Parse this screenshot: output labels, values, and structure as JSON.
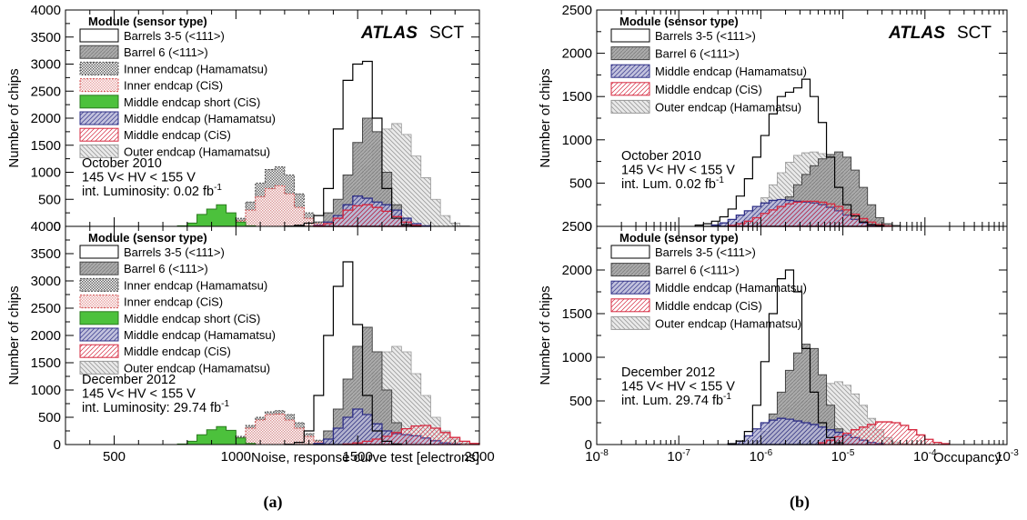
{
  "colors": {
    "barrels35": "#000000",
    "barrel6": "#999999",
    "inner_hamamatsu": "#444444",
    "inner_cis": "#d04848",
    "middle_short_cis": "#4cc13c",
    "middle_hamamatsu": "#2e2f86",
    "middle_cis": "#d6283f",
    "outer_hamamatsu": "#a8a8a8"
  },
  "legend_header": "Module (sensor type)",
  "brand": {
    "atlas": "ATLAS",
    "sct": "SCT"
  },
  "panel_labels": {
    "a": "(a)",
    "b": "(b)"
  },
  "chart_data": [
    {
      "id": "a-top",
      "type": "histogram",
      "ylabel": "Number of chips",
      "xlabel": "",
      "xlim": [
        300,
        2000
      ],
      "ylim": [
        0,
        4000
      ],
      "yticks": [
        0,
        500,
        1000,
        1500,
        2000,
        2500,
        3000,
        3500,
        4000
      ],
      "yticklabels": [
        "0",
        "500",
        "1000",
        "1500",
        "2000",
        "2500",
        "3000",
        "3500",
        "4000"
      ],
      "bin_width": 40,
      "legend": [
        "Barrels 3-5 (<111>)",
        "Barrel 6 (<111>)",
        "Inner endcap (Hamamatsu)",
        "Inner endcap (CiS)",
        "Middle endcap short (CiS)",
        "Middle endcap (Hamamatsu)",
        "Middle endcap (CiS)",
        "Outer endcap (Hamamatsu)"
      ],
      "info": [
        "October 2010",
        "145 V< HV < 155 V"
      ],
      "lumi": {
        "label": "int. Luminosity:  0.02 fb",
        "sup": "-1"
      },
      "series": [
        {
          "key": "barrels35",
          "name": "Barrels 3-5 (<111>)",
          "start": 1200,
          "values": [
            5,
            20,
            60,
            200,
            700,
            1800,
            2700,
            3000,
            3050,
            2000,
            700,
            150,
            30,
            5
          ]
        },
        {
          "key": "barrel6",
          "name": "Barrel 6 (<111>)",
          "start": 1240,
          "values": [
            5,
            20,
            80,
            250,
            500,
            950,
            1550,
            2000,
            1750,
            1000,
            400,
            120,
            30,
            5
          ]
        },
        {
          "key": "inner_hamamatsu",
          "name": "Inner endcap (Hamamatsu)",
          "start": 960,
          "values": [
            20,
            150,
            450,
            800,
            1050,
            1100,
            950,
            600,
            250,
            80,
            10
          ]
        },
        {
          "key": "inner_cis",
          "name": "Inner endcap (CiS)",
          "start": 960,
          "values": [
            10,
            100,
            300,
            550,
            700,
            750,
            600,
            350,
            150,
            50,
            5
          ]
        },
        {
          "key": "middle_short_cis",
          "name": "Middle endcap short (CiS)",
          "start": 760,
          "values": [
            10,
            60,
            220,
            320,
            400,
            250,
            80,
            10
          ]
        },
        {
          "key": "middle_hamamatsu",
          "name": "Middle endcap (Hamamatsu)",
          "start": 1320,
          "values": [
            20,
            80,
            200,
            400,
            560,
            520,
            450,
            400,
            300,
            150,
            50,
            10
          ]
        },
        {
          "key": "middle_cis",
          "name": "Middle endcap (CiS)",
          "start": 1320,
          "values": [
            10,
            50,
            150,
            300,
            380,
            400,
            350,
            280,
            180,
            80,
            20
          ]
        },
        {
          "key": "outer_hamamatsu",
          "name": "Outer endcap (Hamamatsu)",
          "start": 1320,
          "values": [
            10,
            50,
            150,
            350,
            700,
            1100,
            1500,
            1800,
            1900,
            1700,
            1300,
            900,
            500,
            200,
            60,
            10
          ]
        }
      ]
    },
    {
      "id": "a-bottom",
      "type": "histogram",
      "ylabel": "Number of chips",
      "xlabel": "Noise, response curve test [electrons]",
      "xlim": [
        300,
        2000
      ],
      "ylim": [
        0,
        4000
      ],
      "xticks": [
        500,
        1000,
        1500,
        2000
      ],
      "xticklabels": [
        "500",
        "1000",
        "1500",
        "2000"
      ],
      "yticks": [
        0,
        500,
        1000,
        1500,
        2000,
        2500,
        3000,
        3500,
        4000
      ],
      "yticklabels": [
        "0",
        "500",
        "1000",
        "1500",
        "2000",
        "2500",
        "3000",
        "3500",
        "4000"
      ],
      "bin_width": 40,
      "legend": [
        "Barrels 3-5 (<111>)",
        "Barrel 6 (<111>)",
        "Inner endcap (Hamamatsu)",
        "Inner endcap (CiS)",
        "Middle endcap short (CiS)",
        "Middle endcap (Hamamatsu)",
        "Middle endcap (CiS)",
        "Outer endcap (Hamamatsu)"
      ],
      "info": [
        "December 2012",
        "145 V< HV < 155 V"
      ],
      "lumi": {
        "label": "int. Luminosity: 29.74 fb",
        "sup": "-1"
      },
      "series": [
        {
          "key": "barrels35",
          "name": "Barrels 3-5 (<111>)",
          "start": 1200,
          "values": [
            5,
            40,
            250,
            900,
            2000,
            2900,
            3350,
            2200,
            900,
            250,
            60,
            10
          ]
        },
        {
          "key": "barrel6",
          "name": "Barrel 6 (<111>)",
          "start": 1280,
          "values": [
            10,
            60,
            250,
            650,
            1200,
            1800,
            2150,
            1700,
            1000,
            400,
            150,
            40
          ]
        },
        {
          "key": "inner_hamamatsu",
          "name": "Inner endcap (Hamamatsu)",
          "start": 960,
          "values": [
            20,
            150,
            350,
            500,
            600,
            620,
            550,
            400,
            200,
            80,
            15
          ]
        },
        {
          "key": "inner_cis",
          "name": "Inner endcap (CiS)",
          "start": 960,
          "values": [
            10,
            120,
            300,
            450,
            550,
            560,
            450,
            300,
            150,
            50,
            10
          ]
        },
        {
          "key": "middle_short_cis",
          "name": "Middle endcap short (CiS)",
          "start": 760,
          "values": [
            10,
            60,
            180,
            270,
            330,
            260,
            120,
            20
          ]
        },
        {
          "key": "middle_hamamatsu",
          "name": "Middle endcap (Hamamatsu)",
          "start": 1320,
          "values": [
            20,
            100,
            300,
            500,
            650,
            550,
            380,
            250,
            200,
            180,
            160,
            120,
            70,
            30,
            10
          ]
        },
        {
          "key": "middle_cis",
          "name": "Middle endcap (CiS)",
          "start": 1440,
          "values": [
            10,
            30,
            60,
            100,
            150,
            220,
            290,
            340,
            350,
            300,
            220,
            130,
            60,
            20
          ]
        },
        {
          "key": "outer_hamamatsu",
          "name": "Outer endcap (Hamamatsu)",
          "start": 1360,
          "values": [
            10,
            60,
            200,
            500,
            900,
            1300,
            1700,
            1800,
            1700,
            1300,
            900,
            500,
            250,
            100,
            30,
            10
          ]
        }
      ]
    },
    {
      "id": "b-top",
      "type": "histogram",
      "xscale": "log",
      "ylabel": "Number of chips",
      "xlabel": "",
      "xlim": [
        1e-08,
        0.001
      ],
      "ylim": [
        0,
        2500
      ],
      "yticks": [
        0,
        500,
        1000,
        1500,
        2000,
        2500
      ],
      "yticklabels": [
        "0",
        "500",
        "1000",
        "1500",
        "2000",
        "2500"
      ],
      "bins_per_decade": 10,
      "legend": [
        "Barrels 3-5 (<111>)",
        "Barrel 6 (<111>)",
        "Middle endcap (Hamamatsu)",
        "Middle endcap (CiS)",
        "Outer endcap (Hamamatsu)"
      ],
      "info": [
        "October 2010",
        "145 V< HV < 155 V"
      ],
      "lumi": {
        "label": "int. Lum.  0.02 fb",
        "sup": "-1"
      },
      "series": [
        {
          "key": "barrels35",
          "name": "Barrels 3-5 (<111>)",
          "start_exp": -6.8,
          "values": [
            15,
            30,
            60,
            110,
            200,
            350,
            550,
            800,
            1050,
            1300,
            1500,
            1550,
            1600,
            1700,
            1500,
            1200,
            800,
            450,
            250,
            120,
            50,
            20,
            10
          ]
        },
        {
          "key": "barrel6",
          "name": "Barrel 6 (<111>)",
          "start_exp": -6.2,
          "values": [
            10,
            30,
            70,
            130,
            220,
            340,
            480,
            600,
            700,
            780,
            830,
            860,
            800,
            650,
            450,
            250,
            100,
            30,
            10
          ]
        },
        {
          "key": "middle_hamamatsu",
          "name": "Middle endcap (Hamamatsu)",
          "start_exp": -6.6,
          "values": [
            15,
            40,
            80,
            130,
            180,
            230,
            270,
            300,
            310,
            300,
            290,
            280,
            270,
            250,
            220,
            180,
            130,
            80,
            40,
            15,
            5
          ]
        },
        {
          "key": "middle_cis",
          "name": "Middle endcap (CiS)",
          "start_exp": -6.4,
          "values": [
            10,
            30,
            60,
            100,
            150,
            190,
            230,
            260,
            280,
            290,
            290,
            280,
            260,
            230,
            190,
            140,
            90,
            50,
            20,
            5
          ]
        },
        {
          "key": "outer_hamamatsu",
          "name": "Outer endcap (Hamamatsu)",
          "start_exp": -6.4,
          "values": [
            10,
            40,
            100,
            200,
            330,
            480,
            620,
            740,
            820,
            850,
            860,
            840,
            760,
            620,
            450,
            300,
            170,
            80,
            30,
            10
          ]
        }
      ]
    },
    {
      "id": "b-bottom",
      "type": "histogram",
      "xscale": "log",
      "ylabel": "Number of chips",
      "xlabel": "Occupancy",
      "xlim": [
        1e-08,
        0.001
      ],
      "ylim": [
        0,
        2500
      ],
      "xticks_exp": [
        -8,
        -7,
        -6,
        -5,
        -4,
        -3
      ],
      "xticklabels_base": "10",
      "xticklabels_exp": [
        "-8",
        "-7",
        "-6",
        "-5",
        "-4",
        "-3"
      ],
      "yticks": [
        0,
        500,
        1000,
        1500,
        2000,
        2500
      ],
      "yticklabels": [
        "0",
        "500",
        "1000",
        "1500",
        "2000",
        "2500"
      ],
      "bins_per_decade": 10,
      "legend": [
        "Barrels 3-5 (<111>)",
        "Barrel 6 (<111>)",
        "Middle endcap (Hamamatsu)",
        "Middle endcap (CiS)",
        "Outer endcap (Hamamatsu)"
      ],
      "info": [
        "December 2012",
        "145 V< HV < 155 V"
      ],
      "lumi": {
        "label": "int. Lum. 29.74 fb",
        "sup": "-1"
      },
      "series": [
        {
          "key": "barrels35",
          "name": "Barrels 3-5 (<111>)",
          "start_exp": -6.4,
          "values": [
            10,
            40,
            150,
            450,
            950,
            1500,
            1900,
            2000,
            1750,
            1100,
            600,
            250,
            80,
            20
          ]
        },
        {
          "key": "barrel6",
          "name": "Barrel 6 (<111>)",
          "start_exp": -6.2,
          "values": [
            10,
            40,
            150,
            350,
            600,
            850,
            1050,
            1150,
            1100,
            800,
            450,
            180,
            60,
            15
          ]
        },
        {
          "key": "middle_hamamatsu",
          "name": "Middle endcap (Hamamatsu)",
          "start_exp": -6.4,
          "values": [
            10,
            40,
            100,
            180,
            250,
            280,
            300,
            290,
            270,
            250,
            230,
            200,
            170,
            140,
            110,
            80,
            50,
            25,
            10
          ]
        },
        {
          "key": "middle_cis",
          "name": "Middle endcap (CiS)",
          "start_exp": -5.3,
          "values": [
            20,
            50,
            90,
            130,
            170,
            200,
            230,
            260,
            260,
            250,
            220,
            170,
            110,
            60,
            25,
            10
          ]
        },
        {
          "key": "outer_hamamatsu",
          "name": "Outer endcap (Hamamatsu)",
          "start_exp": -6.2,
          "values": [
            10,
            40,
            100,
            200,
            320,
            420,
            480,
            500,
            520,
            600,
            700,
            720,
            680,
            580,
            450,
            300,
            170,
            80,
            30,
            10
          ]
        }
      ]
    }
  ]
}
